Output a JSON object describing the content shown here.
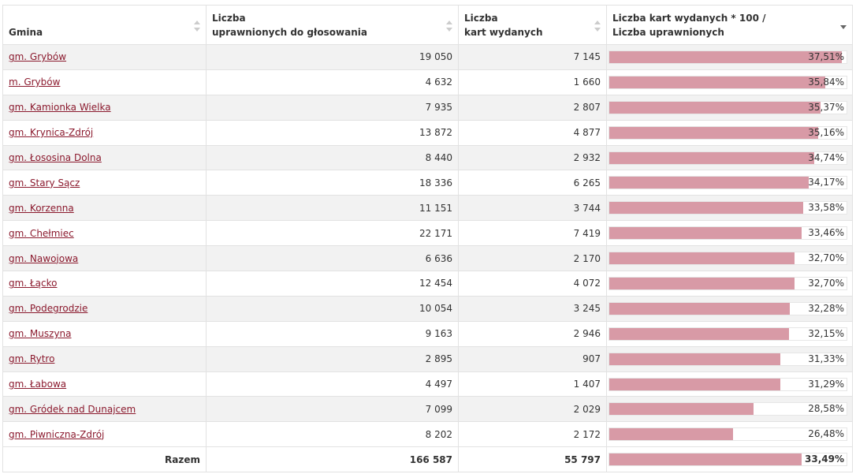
{
  "columns": {
    "gmina": "Gmina",
    "uprawnieni_l1": "Liczba",
    "uprawnieni_l2": "uprawnionych do głosowania",
    "karty_l1": "Liczba",
    "karty_l2": "kart wydanych",
    "frekw_l1": "Liczba kart wydanych * 100 /",
    "frekw_l2": "Liczba uprawnionych"
  },
  "rows": [
    {
      "name": "gm. Grybów",
      "uprawnieni": "19 050",
      "karty": "7 145",
      "pct_label": "37,51%",
      "pct": 37.51
    },
    {
      "name": "m. Grybów",
      "uprawnieni": "4 632",
      "karty": "1 660",
      "pct_label": "35,84%",
      "pct": 35.84
    },
    {
      "name": "gm. Kamionka Wielka",
      "uprawnieni": "7 935",
      "karty": "2 807",
      "pct_label": "35,37%",
      "pct": 35.37
    },
    {
      "name": "gm. Krynica-Zdrój",
      "uprawnieni": "13 872",
      "karty": "4 877",
      "pct_label": "35,16%",
      "pct": 35.16
    },
    {
      "name": "gm. Łososina Dolna",
      "uprawnieni": "8 440",
      "karty": "2 932",
      "pct_label": "34,74%",
      "pct": 34.74
    },
    {
      "name": "gm. Stary Sącz",
      "uprawnieni": "18 336",
      "karty": "6 265",
      "pct_label": "34,17%",
      "pct": 34.17
    },
    {
      "name": "gm. Korzenna",
      "uprawnieni": "11 151",
      "karty": "3 744",
      "pct_label": "33,58%",
      "pct": 33.58
    },
    {
      "name": "gm. Chełmiec",
      "uprawnieni": "22 171",
      "karty": "7 419",
      "pct_label": "33,46%",
      "pct": 33.46
    },
    {
      "name": "gm. Nawojowa",
      "uprawnieni": "6 636",
      "karty": "2 170",
      "pct_label": "32,70%",
      "pct": 32.7
    },
    {
      "name": "gm. Łącko",
      "uprawnieni": "12 454",
      "karty": "4 072",
      "pct_label": "32,70%",
      "pct": 32.7
    },
    {
      "name": "gm. Podegrodzie",
      "uprawnieni": "10 054",
      "karty": "3 245",
      "pct_label": "32,28%",
      "pct": 32.28
    },
    {
      "name": "gm. Muszyna",
      "uprawnieni": "9 163",
      "karty": "2 946",
      "pct_label": "32,15%",
      "pct": 32.15
    },
    {
      "name": "gm. Rytro",
      "uprawnieni": "2 895",
      "karty": "907",
      "pct_label": "31,33%",
      "pct": 31.33
    },
    {
      "name": "gm. Łabowa",
      "uprawnieni": "4 497",
      "karty": "1 407",
      "pct_label": "31,29%",
      "pct": 31.29
    },
    {
      "name": "gm. Gródek nad Dunajcem",
      "uprawnieni": "7 099",
      "karty": "2 029",
      "pct_label": "28,58%",
      "pct": 28.58
    },
    {
      "name": "gm. Piwniczna-Zdrój",
      "uprawnieni": "8 202",
      "karty": "2 172",
      "pct_label": "26,48%",
      "pct": 26.48
    }
  ],
  "total": {
    "label": "Razem",
    "uprawnieni": "166 587",
    "karty": "55 797",
    "pct_label": "33,49%",
    "pct": 33.49
  },
  "colors": {
    "bar_fill": "#d89aa6",
    "link": "#8b1a2e",
    "stripe": "#f2f2f2"
  },
  "bar_scale": {
    "min": 14,
    "max": 38
  }
}
